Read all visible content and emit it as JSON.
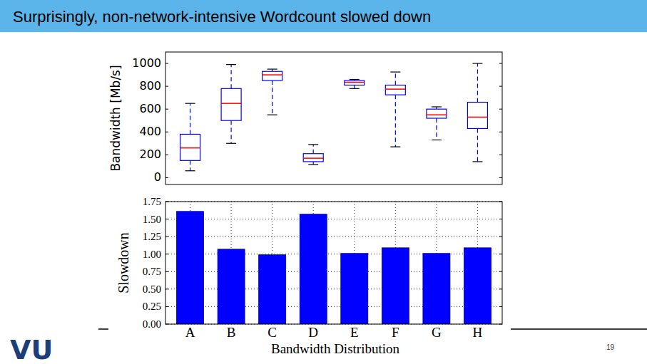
{
  "title": "Surprisingly, non-network-intensive Wordcount slowed down",
  "logo": "VU",
  "page_number": 19,
  "chart_data": [
    {
      "type": "box",
      "ylabel": "Bandwidth [Mb/s]",
      "categories": [
        "A",
        "B",
        "C",
        "D",
        "E",
        "F",
        "G",
        "H"
      ],
      "min": [
        60,
        300,
        550,
        115,
        780,
        270,
        330,
        140
      ],
      "q1": [
        150,
        500,
        850,
        140,
        810,
        725,
        520,
        430
      ],
      "median": [
        260,
        650,
        900,
        170,
        835,
        775,
        550,
        530
      ],
      "q3": [
        380,
        780,
        930,
        210,
        850,
        810,
        600,
        660
      ],
      "max": [
        650,
        990,
        950,
        290,
        860,
        925,
        620,
        1000
      ],
      "ylim": [
        -60,
        1100
      ],
      "yticks": [
        0,
        200,
        400,
        600,
        800,
        1000
      ],
      "color": "#0000ff",
      "tick_labels": "y",
      "grid": false
    },
    {
      "type": "bar",
      "xlabel": "Bandwidth Distribution",
      "ylabel": "Slowdown",
      "categories": [
        "A",
        "B",
        "C",
        "D",
        "E",
        "F",
        "G",
        "H"
      ],
      "values": [
        1.61,
        1.07,
        0.99,
        1.57,
        1.01,
        1.09,
        1.01,
        1.09
      ],
      "color": "#0000ff",
      "ylim": [
        0,
        1.75
      ],
      "yticks": [
        {
          "value": 0,
          "label": "0.00"
        },
        {
          "value": 0.25,
          "label": "0.25"
        },
        {
          "value": 0.5,
          "label": "0.50"
        },
        {
          "value": 0.75,
          "label": "0.75"
        },
        {
          "value": 1,
          "label": "1.00"
        },
        {
          "value": 1.25,
          "label": "1.25"
        },
        {
          "value": 1.5,
          "label": "1.50"
        },
        {
          "value": 1.75,
          "label": "1.75"
        }
      ],
      "grid": true
    }
  ]
}
